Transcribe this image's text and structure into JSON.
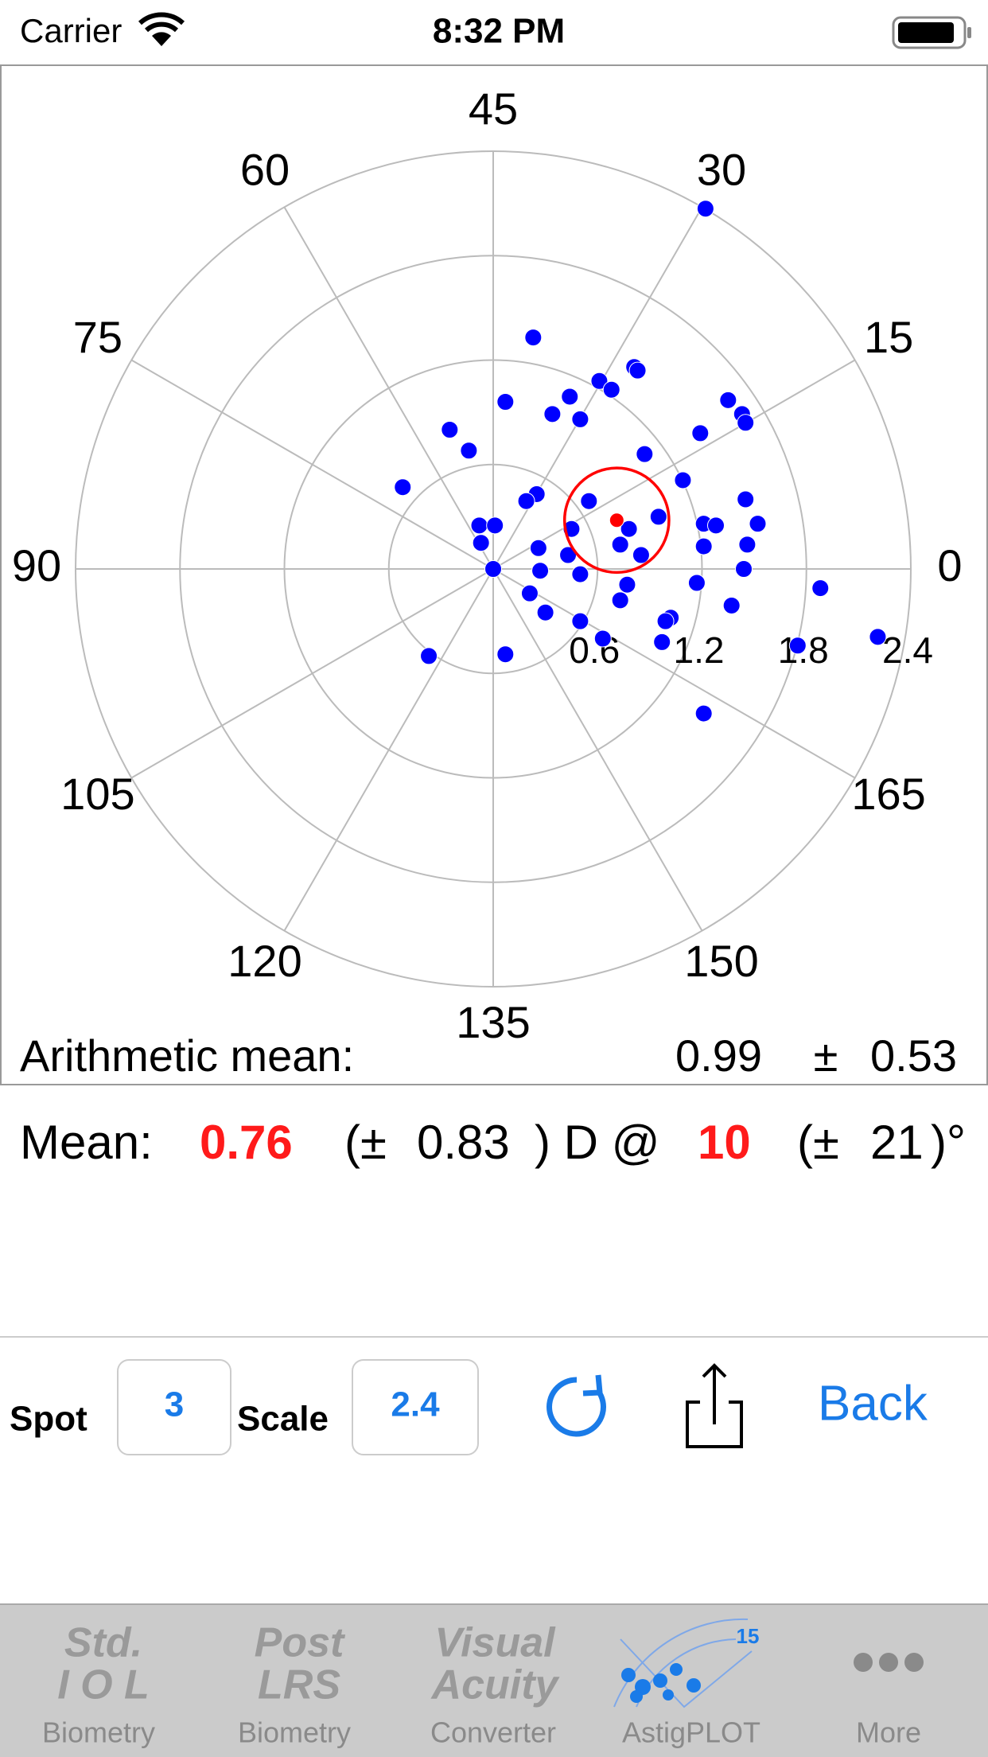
{
  "status_bar": {
    "carrier": "Carrier",
    "time": "8:32 PM"
  },
  "chart_data": {
    "type": "polar-scatter",
    "angle_ticks": [
      0,
      15,
      30,
      45,
      60,
      75,
      90,
      105,
      120,
      135,
      150,
      165
    ],
    "rlim": [
      0,
      2.4
    ],
    "rticks": [
      0.6,
      1.2,
      1.8,
      2.4
    ],
    "series": [
      {
        "color": "#0000ff",
        "x": [
          1.22,
          0.23,
          0.81,
          0.83,
          0.61,
          0.68,
          0.44,
          0.07,
          1.35,
          1.43,
          1.45,
          0.34,
          0.5,
          -0.25,
          1.19,
          -0.14,
          0.87,
          1.09,
          -0.52,
          0.25,
          0.19,
          0.55,
          1.45,
          0.95,
          1.21,
          1.28,
          1.52,
          0.78,
          0.45,
          -0.08,
          0.01,
          -0.07,
          0.73,
          0.85,
          0.26,
          1.21,
          1.46,
          0.43,
          0,
          0.27,
          0.5,
          1.44,
          1.88,
          0.77,
          1.17,
          0.21,
          0.73,
          1.37,
          0.3,
          0.5,
          1.02,
          0.99,
          0.63,
          0.97,
          2.21,
          1.75,
          -0.37,
          0.07,
          1.21
        ],
        "y": [
          2.07,
          1.33,
          1.16,
          1.14,
          1.08,
          1.03,
          0.99,
          0.96,
          0.97,
          0.89,
          0.84,
          0.89,
          0.86,
          0.8,
          0.78,
          0.68,
          0.66,
          0.51,
          0.47,
          0.43,
          0.39,
          0.39,
          0.4,
          0.3,
          0.26,
          0.25,
          0.26,
          0.23,
          0.23,
          0.25,
          0.25,
          0.15,
          0.14,
          0.08,
          0.12,
          0.13,
          0.14,
          0.08,
          0,
          -0.01,
          -0.03,
          0,
          -0.11,
          -0.09,
          -0.08,
          -0.14,
          -0.18,
          -0.21,
          -0.25,
          -0.3,
          -0.28,
          -0.3,
          -0.4,
          -0.42,
          -0.39,
          -0.44,
          -0.5,
          -0.49,
          -0.83
        ]
      },
      {
        "color": "#ff0000",
        "x": [
          0.71
        ],
        "y": [
          0.28
        ],
        "circle_radius": 0.3
      }
    ],
    "annotation": {
      "label": "Arithmetic mean:",
      "value": 0.99,
      "pm": "±",
      "sd": 0.53
    }
  },
  "mean": {
    "label": "Mean:",
    "magnitude": 0.76,
    "pm_open": "(±",
    "magnitude_sd": 0.83,
    "unit": ") D @",
    "axis": 10,
    "axis_sd": 21,
    "close": ")°"
  },
  "controls": {
    "spot_label": "Spot",
    "spot": 3,
    "scale_label": "Scale",
    "scale": 2.4,
    "back": "Back"
  },
  "tabs": [
    {
      "icon": [
        "Std.",
        "I O L"
      ],
      "label": "Biometry"
    },
    {
      "icon": [
        "Post",
        "LRS"
      ],
      "label": "Biometry"
    },
    {
      "icon": [
        "Visual",
        "Acuity"
      ],
      "label": "Converter"
    },
    {
      "icon_text": "15",
      "label": "AstigPLOT"
    },
    {
      "label": "More"
    }
  ]
}
